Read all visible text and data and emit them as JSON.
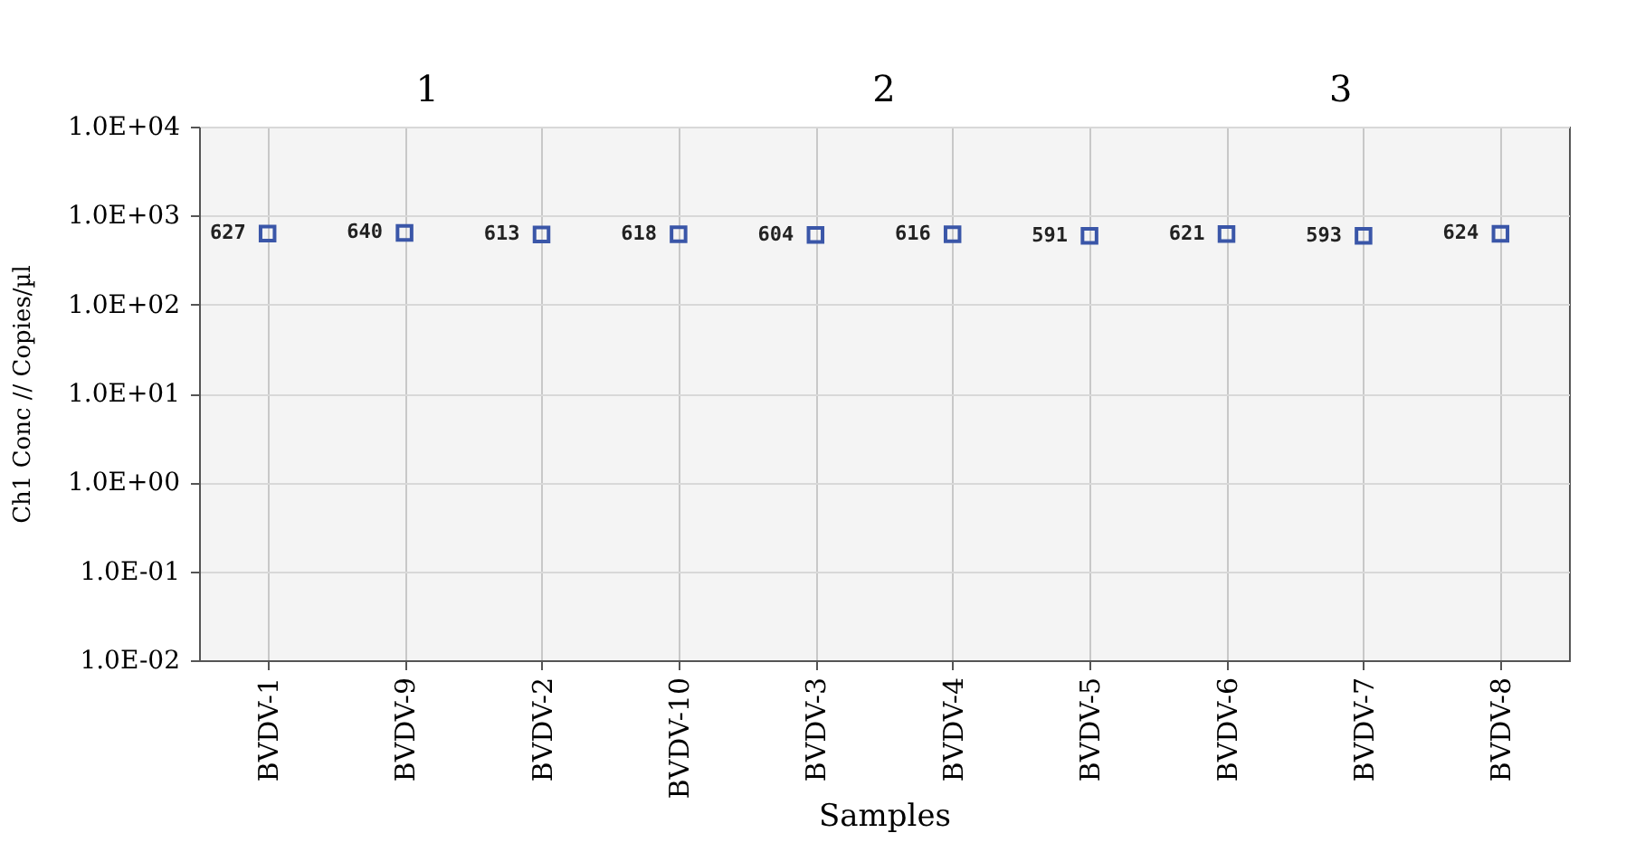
{
  "chart_data": {
    "type": "scatter",
    "xlabel": "Samples",
    "ylabel": "Ch1 Conc // Copies/µl",
    "categories": [
      "BVDV-1",
      "BVDV-9",
      "BVDV-2",
      "BVDV-10",
      "BVDV-3",
      "BVDV-4",
      "BVDV-5",
      "BVDV-6",
      "BVDV-7",
      "BVDV-8"
    ],
    "series": [
      {
        "color": "#3a56a8",
        "values": [
          627,
          640,
          613,
          618,
          604,
          616,
          591,
          621,
          593,
          624
        ]
      }
    ],
    "data_labels": true,
    "marker": "square",
    "log": "y",
    "grid": true,
    "ylim": [
      0.01,
      10000
    ],
    "yticks": [
      {
        "value": 0.01,
        "label": "1.0E-02"
      },
      {
        "value": 0.1,
        "label": "1.0E-01"
      },
      {
        "value": 1,
        "label": "1.0E+00"
      },
      {
        "value": 10,
        "label": "1.0E+01"
      },
      {
        "value": 100,
        "label": "1.0E+02"
      },
      {
        "value": 1000,
        "label": "1.0E+03"
      },
      {
        "value": 10000,
        "label": "1.0E+04"
      }
    ],
    "annotations": [
      "1",
      "2",
      "3"
    ]
  }
}
